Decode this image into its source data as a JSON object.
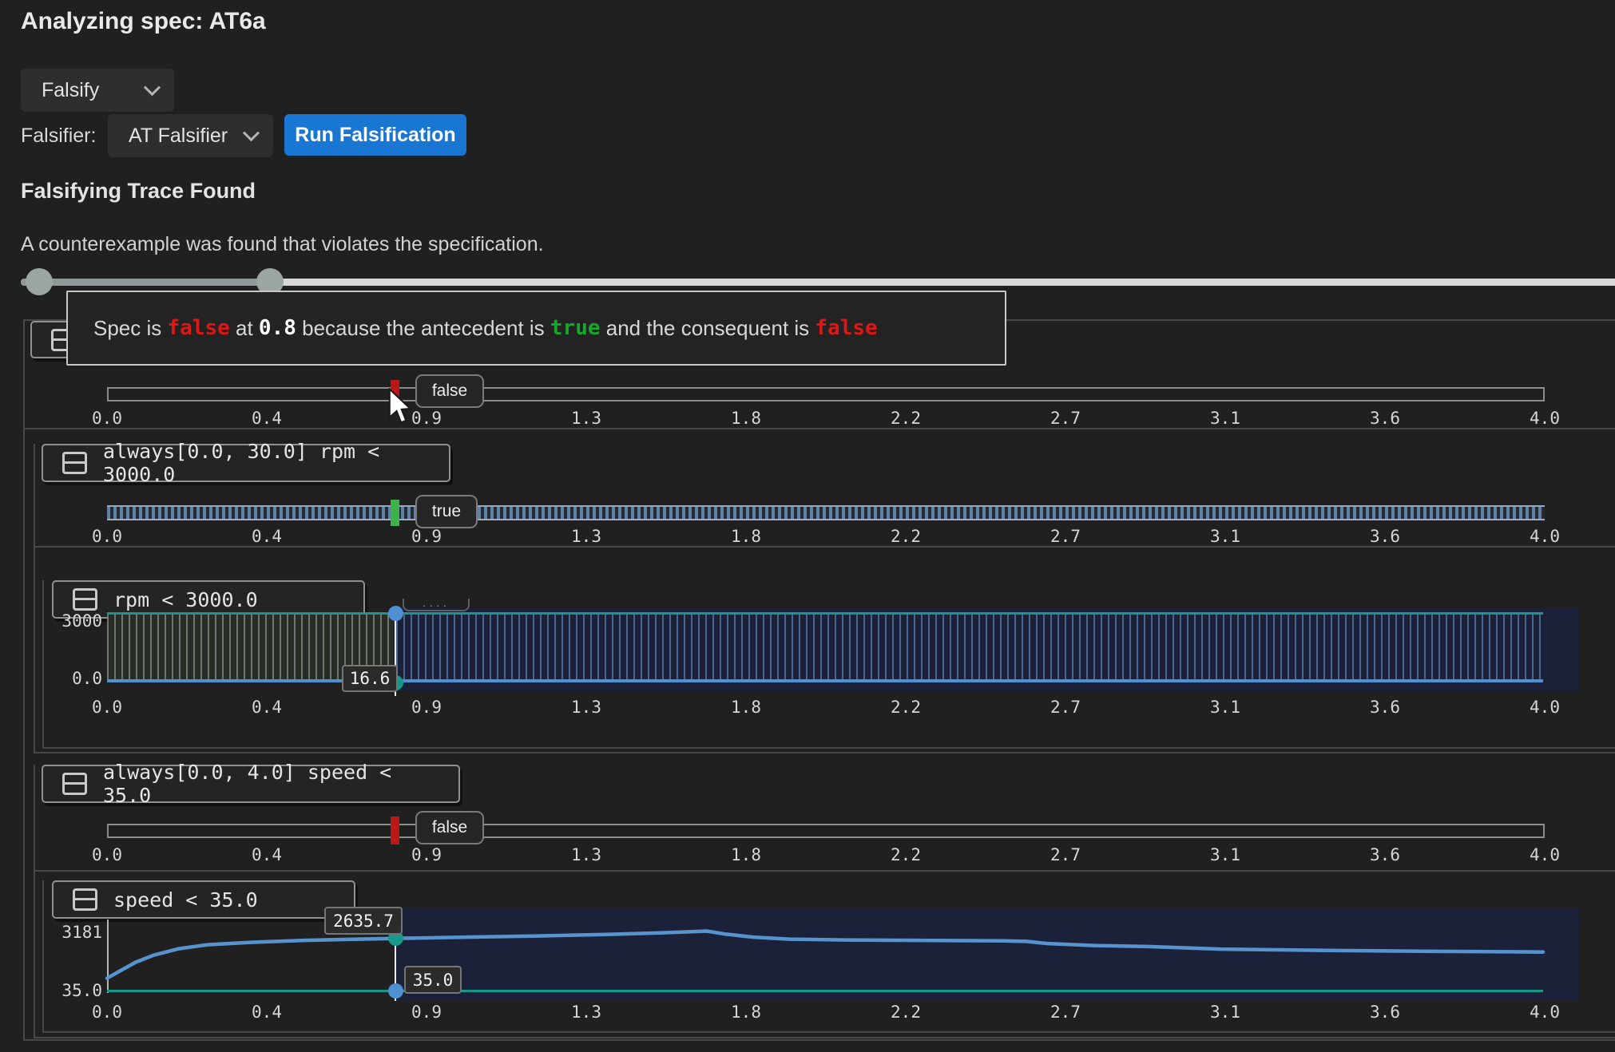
{
  "title": "Analyzing spec: AT6a",
  "controls": {
    "mode_select": {
      "value": "Falsify"
    },
    "falsifier_label": "Falsifier:",
    "falsifier_select": {
      "value": "AT Falsifier"
    },
    "run_button": "Run Falsification"
  },
  "result": {
    "heading": "Falsifying Trace Found",
    "message": "A counterexample was found that violates the specification."
  },
  "explanation": {
    "segments": [
      {
        "text": "Spec is ",
        "style": "plain"
      },
      {
        "text": "false",
        "style": "false"
      },
      {
        "text": " at ",
        "style": "plain"
      },
      {
        "text": "0.8",
        "style": "val"
      },
      {
        "text": " because the antecedent is ",
        "style": "plain"
      },
      {
        "text": "true",
        "style": "true"
      },
      {
        "text": " and the consequent is ",
        "style": "plain"
      },
      {
        "text": "false",
        "style": "false"
      }
    ]
  },
  "time_axis": {
    "min": 0.0,
    "max": 4.0,
    "ticks": [
      "0.0",
      "0.4",
      "0.9",
      "1.3",
      "1.8",
      "2.2",
      "2.7",
      "3.1",
      "3.6",
      "4.0"
    ]
  },
  "panels": {
    "spec": {
      "verdict": "false",
      "verdict_time": 0.8
    },
    "antecedent": {
      "title": "always[0.0, 30.0] rpm < 3000.0",
      "verdict": "true",
      "verdict_time": 0.8
    },
    "rpm_sub": {
      "title": "rpm < 3000.0",
      "y_max_label": "3000",
      "y_min_label": "0.0",
      "cursor_value": "16.6"
    },
    "consequent": {
      "title": "always[0.0, 4.0] speed < 35.0",
      "verdict": "false",
      "verdict_time": 0.8
    },
    "speed_sub": {
      "title": "speed < 35.0",
      "y_max_label": "3181",
      "y_min_label": "35.0",
      "cursor_value": "2635.7",
      "threshold_label": "35.0"
    }
  },
  "chart_data": [
    {
      "type": "area",
      "title": "rpm < 3000.0",
      "x": [
        0.0,
        4.0
      ],
      "top_line": [
        3000,
        3000
      ],
      "bottom_line": [
        0,
        0
      ],
      "ylim": [
        0,
        3000
      ],
      "yticks": [
        "0.0",
        "3000"
      ],
      "xticks": [
        "0.0",
        "0.4",
        "0.9",
        "1.3",
        "1.8",
        "2.2",
        "2.7",
        "3.1",
        "3.6",
        "4.0"
      ],
      "cursor": {
        "t": 0.8,
        "value": 16.6
      }
    },
    {
      "type": "line",
      "title": "speed < 35.0",
      "x": [
        0,
        0.04,
        0.08,
        0.13,
        0.2,
        0.28,
        0.4,
        0.55,
        0.7,
        0.8,
        1.0,
        1.2,
        1.4,
        1.55,
        1.67,
        1.72,
        1.8,
        1.9,
        2.05,
        2.3,
        2.5,
        2.56,
        2.62,
        2.75,
        2.9,
        3.1,
        3.4,
        3.7,
        4.0
      ],
      "y": [
        650,
        1050,
        1450,
        1800,
        2120,
        2320,
        2440,
        2540,
        2600,
        2635.7,
        2700,
        2760,
        2840,
        2920,
        3000,
        2860,
        2700,
        2600,
        2560,
        2530,
        2510,
        2490,
        2380,
        2280,
        2230,
        2100,
        2040,
        1990,
        1960
      ],
      "threshold": 35.0,
      "ylim": [
        35.0,
        3181
      ],
      "yticks": [
        "35.0",
        "3181"
      ],
      "xticks": [
        "0.0",
        "0.4",
        "0.9",
        "1.3",
        "1.8",
        "2.2",
        "2.7",
        "3.1",
        "3.6",
        "4.0"
      ],
      "cursor": {
        "t": 0.8,
        "value": 2635.7
      }
    }
  ]
}
